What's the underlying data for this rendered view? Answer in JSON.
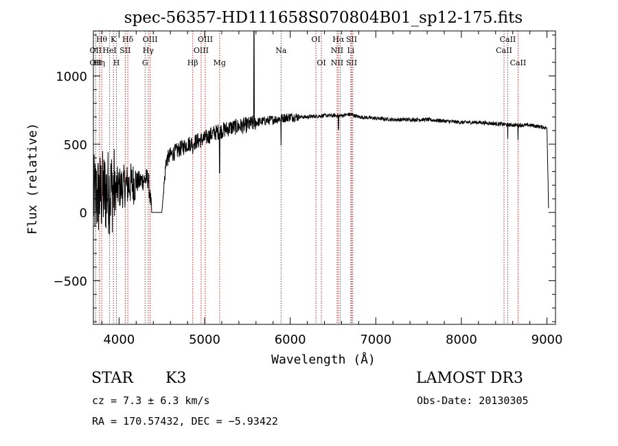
{
  "chart_data": {
    "type": "line",
    "title": "spec-56357-HD111658S070804B01_sp12-175.fits",
    "xlabel": "Wavelength (Å)",
    "ylabel": "Flux (relative)",
    "xlim": [
      3700,
      9100
    ],
    "ylim": [
      -820,
      1330
    ],
    "x_ticks": [
      4000,
      5000,
      6000,
      7000,
      8000,
      9000
    ],
    "x_tick_labels": [
      "4000",
      "5000",
      "6000",
      "7000",
      "8000",
      "9000"
    ],
    "y_ticks": [
      -500,
      0,
      500,
      1000
    ],
    "y_tick_labels": [
      "−500",
      "0",
      "500",
      "1000"
    ],
    "grid": false,
    "line_markers": [
      {
        "wavelength": 3727,
        "labels": [
          "",
          "OII",
          "OII"
        ]
      },
      {
        "wavelength": 3771,
        "labels": [
          "",
          "",
          "Hη"
        ]
      },
      {
        "wavelength": 3797,
        "labels": [
          "Hθ",
          "",
          ""
        ]
      },
      {
        "wavelength": 3889,
        "labels": [
          "",
          "HeI",
          ""
        ]
      },
      {
        "wavelength": 3934,
        "labels": [
          "K",
          "",
          ""
        ]
      },
      {
        "wavelength": 3969,
        "labels": [
          "",
          "",
          "H"
        ]
      },
      {
        "wavelength": 4072,
        "labels": [
          "",
          "SII",
          ""
        ]
      },
      {
        "wavelength": 4102,
        "labels": [
          "Hδ",
          "",
          ""
        ]
      },
      {
        "wavelength": 4304,
        "labels": [
          "",
          "",
          "G"
        ]
      },
      {
        "wavelength": 4341,
        "labels": [
          "",
          "Hγ",
          ""
        ]
      },
      {
        "wavelength": 4363,
        "labels": [
          "OIII",
          "",
          ""
        ]
      },
      {
        "wavelength": 4861,
        "labels": [
          "",
          "",
          "Hβ"
        ]
      },
      {
        "wavelength": 4959,
        "labels": [
          "",
          "OIII",
          ""
        ]
      },
      {
        "wavelength": 5007,
        "labels": [
          "OIII",
          "",
          ""
        ]
      },
      {
        "wavelength": 5175,
        "labels": [
          "",
          "",
          "Mg"
        ]
      },
      {
        "wavelength": 5893,
        "labels": [
          "",
          "Na",
          ""
        ]
      },
      {
        "wavelength": 6300,
        "labels": [
          "OI",
          "",
          ""
        ]
      },
      {
        "wavelength": 6364,
        "labels": [
          "",
          "",
          "OI"
        ]
      },
      {
        "wavelength": 6548,
        "labels": [
          "",
          "NII",
          "NII"
        ]
      },
      {
        "wavelength": 6563,
        "labels": [
          "Hα",
          "",
          ""
        ]
      },
      {
        "wavelength": 6584,
        "labels": [
          "",
          "",
          ""
        ]
      },
      {
        "wavelength": 6708,
        "labels": [
          "",
          "Li",
          ""
        ]
      },
      {
        "wavelength": 6717,
        "labels": [
          "SII",
          "",
          "SII"
        ]
      },
      {
        "wavelength": 6731,
        "labels": [
          "",
          "",
          ""
        ]
      },
      {
        "wavelength": 8498,
        "labels": [
          "",
          "CaII",
          ""
        ]
      },
      {
        "wavelength": 8542,
        "labels": [
          "CaII",
          "",
          ""
        ]
      },
      {
        "wavelength": 8662,
        "labels": [
          "",
          "",
          "CaII"
        ]
      }
    ],
    "spectrum_continuum": {
      "wavelength": [
        3700,
        3750,
        3800,
        3850,
        3900,
        3950,
        4000,
        4050,
        4100,
        4150,
        4200,
        4250,
        4300,
        4340,
        4380,
        4450,
        4500,
        4550,
        4600,
        4700,
        4800,
        4900,
        5000,
        5100,
        5200,
        5300,
        5400,
        5500,
        5600,
        5700,
        5800,
        5900,
        6000,
        6200,
        6400,
        6600,
        6700,
        6800,
        7000,
        7200,
        7400,
        7600,
        7800,
        8000,
        8200,
        8400,
        8600,
        8800,
        9000,
        9020
      ],
      "flux": [
        100,
        120,
        140,
        150,
        160,
        170,
        180,
        190,
        200,
        210,
        220,
        230,
        240,
        250,
        0,
        0,
        0,
        380,
        420,
        460,
        500,
        520,
        540,
        580,
        600,
        620,
        630,
        640,
        660,
        670,
        680,
        690,
        700,
        700,
        710,
        710,
        720,
        700,
        690,
        680,
        680,
        680,
        670,
        660,
        660,
        650,
        640,
        640,
        620,
        0
      ]
    },
    "spectrum_features": {
      "wavelength": [
        5577,
        5893,
        6563,
        8542,
        8662,
        5175,
        4861
      ],
      "flux_at_feature": [
        1330,
        490,
        610,
        540,
        530,
        290,
        430
      ],
      "note": "sharp spike / absorption dips"
    }
  },
  "footer": {
    "object_type": "STAR",
    "subclass": "K3",
    "cz": "cz = 7.3 ± 6.3 km/s",
    "coords": "RA = 170.57432, DEC =  −5.93422",
    "survey": "LAMOST DR3",
    "obs_date": "Obs-Date: 20130305"
  },
  "colors": {
    "spectrum": "#000000",
    "marker_line": "#b22222",
    "axis": "#000000",
    "background": "#ffffff"
  }
}
